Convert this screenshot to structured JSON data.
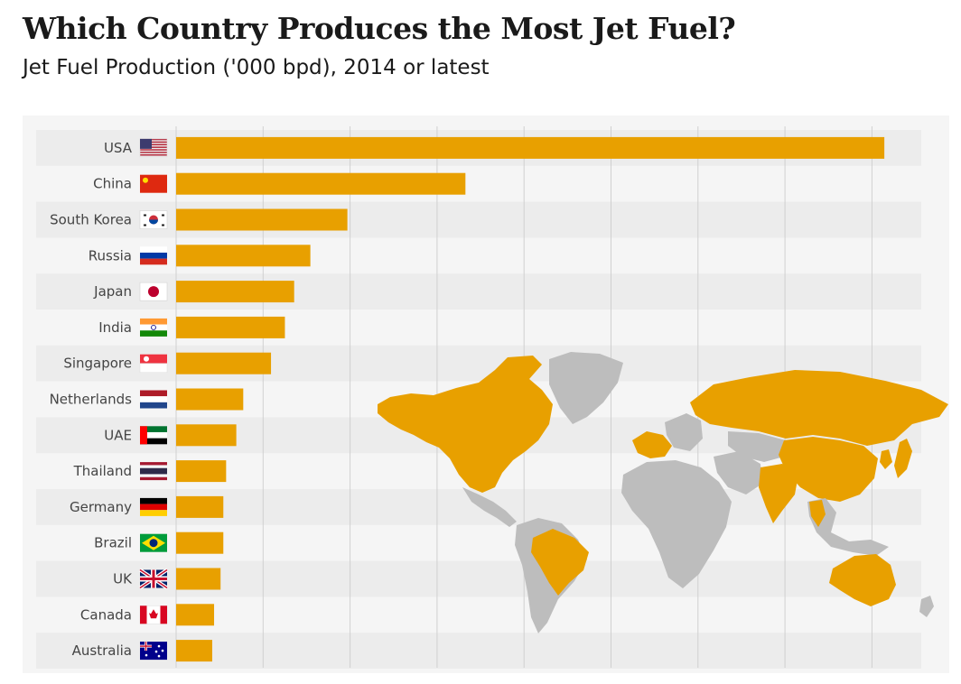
{
  "header": {
    "title": "Which Country Produces the Most Jet Fuel?",
    "subtitle": "Jet Fuel Production ('000 bpd), 2014 or latest"
  },
  "colors": {
    "bar": "#e8a000",
    "band": "#ececec",
    "panel": "#f5f5f5",
    "grid": "#d0d0d0",
    "map_highlight": "#e8a000",
    "map_other": "#bdbdbd"
  },
  "map": {
    "highlighted_regions": [
      "north-america",
      "south-america-brazil",
      "russia",
      "china",
      "india",
      "australia",
      "europe-west",
      "middle-east-uae",
      "southeast-asia",
      "japan",
      "korea"
    ]
  },
  "chart_data": {
    "type": "bar",
    "orientation": "horizontal",
    "title": "Which Country Produces the Most Jet Fuel?",
    "subtitle": "Jet Fuel Production ('000 bpd), 2014 or latest",
    "categories": [
      "USA",
      "China",
      "South Korea",
      "Russia",
      "Japan",
      "India",
      "Singapore",
      "Netherlands",
      "UAE",
      "Thailand",
      "Germany",
      "Brazil",
      "UK",
      "Canada",
      "Australia"
    ],
    "flags": [
      "flag-usa-icon",
      "flag-china-icon",
      "flag-south-korea-icon",
      "flag-russia-icon",
      "flag-japan-icon",
      "flag-india-icon",
      "flag-singapore-icon",
      "flag-netherlands-icon",
      "flag-uae-icon",
      "flag-thailand-icon",
      "flag-germany-icon",
      "flag-brazil-icon",
      "flag-uk-icon",
      "flag-canada-icon",
      "flag-australia-icon"
    ],
    "values": [
      1530,
      625,
      370,
      290,
      255,
      235,
      205,
      145,
      130,
      108,
      102,
      102,
      96,
      82,
      78
    ],
    "xlim": [
      0,
      1600
    ],
    "grid": true,
    "legend": "none"
  }
}
